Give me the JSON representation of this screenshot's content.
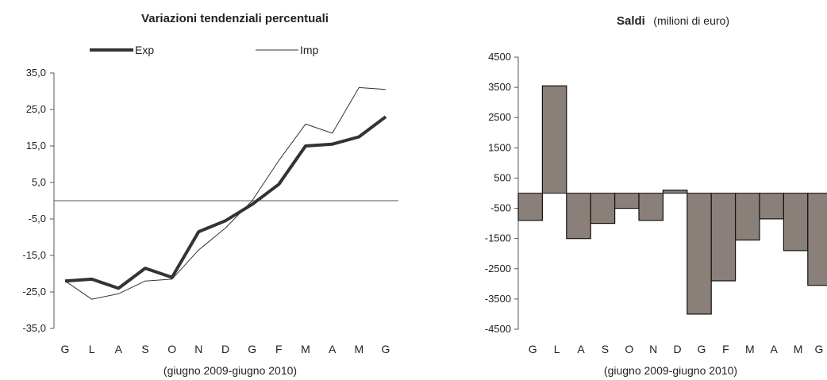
{
  "chart_data": [
    {
      "type": "line",
      "title": "Variazioni tendenziali percentuali",
      "xlabel": "(giugno 2009-giugno 2010)",
      "categories": [
        "G",
        "L",
        "A",
        "S",
        "O",
        "N",
        "D",
        "G",
        "F",
        "M",
        "A",
        "M",
        "G"
      ],
      "yticks": [
        "35,0",
        "25,0",
        "15,0",
        "5,0",
        "-5,0",
        "-15,0",
        "-25,0",
        "-35,0"
      ],
      "ylim": [
        -35,
        35
      ],
      "legend_position": "top",
      "series": [
        {
          "name": "Exp",
          "values": [
            -22,
            -21.5,
            -24,
            -18.5,
            -21,
            -8.5,
            -5.5,
            -1,
            4.5,
            15,
            15.5,
            17.5,
            23
          ],
          "color": "#333333"
        },
        {
          "name": "Imp",
          "values": [
            -22,
            -27,
            -25.5,
            -22,
            -21.5,
            -13.5,
            -7.5,
            0,
            11,
            21,
            18.5,
            31,
            30.5
          ],
          "color": "#333333"
        }
      ]
    },
    {
      "type": "bar",
      "title": "Saldi",
      "subtitle": "(milioni di euro)",
      "xlabel": "(giugno 2009-giugno 2010)",
      "categories": [
        "G",
        "L",
        "A",
        "S",
        "O",
        "N",
        "D",
        "G",
        "F",
        "M",
        "A",
        "M",
        "G"
      ],
      "yticks": [
        "4500",
        "3500",
        "2500",
        "1500",
        "500",
        "-500",
        "-1500",
        "-2500",
        "-3500",
        "-4500"
      ],
      "ylim": [
        -4500,
        4500
      ],
      "values": [
        -900,
        3550,
        -1500,
        -1000,
        -500,
        -900,
        100,
        -4000,
        -2900,
        -1550,
        -850,
        -1900,
        -3050
      ],
      "bar_color": "#8b7f7a"
    }
  ]
}
